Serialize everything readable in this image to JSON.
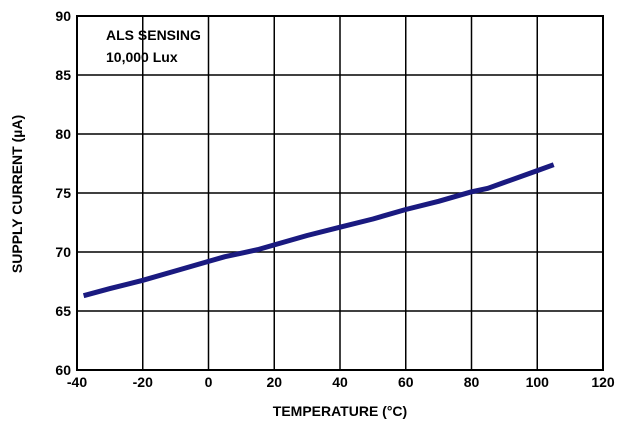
{
  "chart_data": {
    "type": "line",
    "xlabel": "TEMPERATURE (°C)",
    "ylabel": "SUPPLY CURRENT (µA)",
    "annotations": [
      "ALS SENSING",
      "10,000 Lux"
    ],
    "xlim": [
      -40,
      120
    ],
    "ylim": [
      60,
      90
    ],
    "x_ticks": [
      -40,
      -20,
      0,
      20,
      40,
      60,
      80,
      100,
      120
    ],
    "y_ticks": [
      60,
      65,
      70,
      75,
      80,
      85,
      90
    ],
    "x_tick_labels": [
      "-40",
      "-20",
      "0",
      "20",
      "40",
      "60",
      "80",
      "100",
      "120"
    ],
    "y_tick_labels": [
      "60",
      "65",
      "70",
      "75",
      "80",
      "85",
      "90"
    ],
    "grid": true,
    "line_color": "#1a1a80",
    "series": [
      {
        "x": [
          -38,
          -30,
          -20,
          -10,
          0,
          5,
          10,
          15,
          20,
          30,
          40,
          50,
          60,
          70,
          80,
          85,
          90,
          100,
          105
        ],
        "y": [
          66.3,
          66.9,
          67.6,
          68.4,
          69.2,
          69.6,
          69.9,
          70.2,
          70.6,
          71.4,
          72.1,
          72.8,
          73.6,
          74.3,
          75.1,
          75.4,
          75.9,
          76.9,
          77.4
        ]
      }
    ]
  }
}
